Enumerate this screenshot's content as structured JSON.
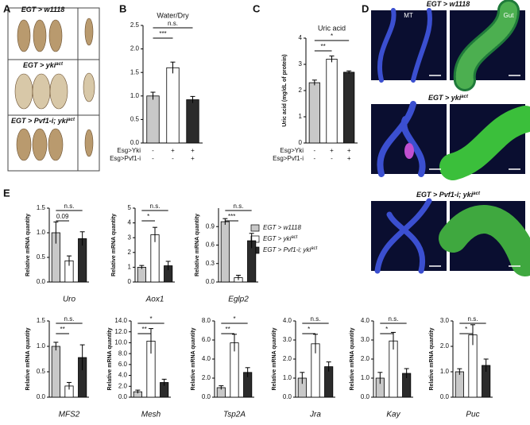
{
  "panel_labels": [
    "A",
    "B",
    "C",
    "D",
    "E"
  ],
  "fly_photos": {
    "labels": [
      {
        "text": "EGT > w1118"
      },
      {
        "text": "EGT > yki",
        "sup": "act"
      },
      {
        "text": "EGT > Pvf1-i; yki",
        "sup": "act"
      }
    ]
  },
  "microscopy": {
    "rows": [
      {
        "text": "EGT > w1118"
      },
      {
        "text": "EGT > yki",
        "sup": "act"
      },
      {
        "text": "EGT > Pvf1-i; yki",
        "sup": "act"
      }
    ],
    "columns": [
      "MT",
      "Gut"
    ]
  },
  "legend": {
    "entries": [
      {
        "text": "EGT > w1118",
        "color": "#c8c8c8"
      },
      {
        "text": "EGT > yki",
        "sup": "act",
        "color": "#ffffff"
      },
      {
        "text": "EGT > Pvf1-i; yki",
        "sup": "act",
        "color": "#2b2b2b"
      }
    ]
  },
  "chart_data": [
    {
      "type": "bar",
      "title": "Water/Dry",
      "colors": [
        "#c8c8c8",
        "#ffffff",
        "#2b2b2b"
      ],
      "values": [
        1.0,
        1.6,
        0.92
      ],
      "errors": [
        0.08,
        0.12,
        0.07
      ],
      "ylim": [
        0,
        2.5
      ],
      "yticks": [
        {
          "value": 0,
          "label": "0.0"
        },
        0.5,
        {
          "value": 1,
          "label": "1.0"
        },
        1.5,
        {
          "value": 2,
          "label": "2.0"
        },
        2.5
      ],
      "significance": [
        "***",
        "n.s."
      ],
      "conditions": [
        {
          "label": "Esg>Yki",
          "values": [
            "-",
            "+",
            "+"
          ]
        },
        {
          "label": "Esg>Pvf1-i",
          "values": [
            "-",
            "-",
            "+"
          ]
        }
      ]
    },
    {
      "type": "bar",
      "title": "Uric acid",
      "ylabel": "Uric acid (mg/dL of protein)",
      "colors": [
        "#c8c8c8",
        "#ffffff",
        "#2b2b2b"
      ],
      "values": [
        2.3,
        3.2,
        2.7
      ],
      "errors": [
        0.1,
        0.12,
        0.05
      ],
      "ylim": [
        0,
        4
      ],
      "yticks": [
        0,
        1,
        2,
        3,
        4
      ],
      "significance": [
        "**",
        "*"
      ],
      "conditions": [
        {
          "label": "Esg>Yki",
          "values": [
            "-",
            "+",
            "+"
          ]
        },
        {
          "label": "Esg>Pvf1-i",
          "values": [
            "-",
            "-",
            "+"
          ]
        }
      ]
    },
    {
      "type": "bar",
      "xlabel": "Uro",
      "ylabel": "Relative mRNA quantity",
      "colors": [
        "#c8c8c8",
        "#ffffff",
        "#2b2b2b"
      ],
      "values": [
        1.0,
        0.43,
        0.88
      ],
      "errors": [
        0.22,
        0.1,
        0.14
      ],
      "ylim": [
        0,
        1.5
      ],
      "yticks": [
        {
          "value": 0,
          "label": "0.0"
        },
        0.5,
        {
          "value": 1,
          "label": "1.0"
        },
        1.5
      ],
      "significance": [
        "0.09",
        "n.s."
      ]
    },
    {
      "type": "bar",
      "xlabel": "Aox1",
      "ylabel": "Relative mRNA quantity",
      "colors": [
        "#c8c8c8",
        "#ffffff",
        "#2b2b2b"
      ],
      "values": [
        1.0,
        3.2,
        1.1
      ],
      "errors": [
        0.12,
        0.5,
        0.3
      ],
      "ylim": [
        0,
        5
      ],
      "yticks": [
        0,
        1,
        2,
        3,
        4,
        5
      ],
      "significance": [
        "*",
        "n.s."
      ]
    },
    {
      "type": "bar",
      "xlabel": "Eglp2",
      "ylabel": "Relative mRNA quantity",
      "colors": [
        "#c8c8c8",
        "#ffffff",
        "#2b2b2b"
      ],
      "values": [
        0.98,
        0.07,
        0.67
      ],
      "errors": [
        0.05,
        0.04,
        0.12
      ],
      "ylim": [
        0,
        1.2
      ],
      "yticks": [
        {
          "value": 0,
          "label": "0.0"
        },
        0.3,
        0.6,
        0.9
      ],
      "significance": [
        "***",
        "n.s."
      ]
    },
    {
      "type": "bar",
      "xlabel": "MFS2",
      "ylabel": "Relative mRNA quantity",
      "colors": [
        "#c8c8c8",
        "#ffffff",
        "#2b2b2b"
      ],
      "values": [
        1.0,
        0.22,
        0.78
      ],
      "errors": [
        0.08,
        0.07,
        0.25
      ],
      "ylim": [
        0,
        1.5
      ],
      "yticks": [
        {
          "value": 0,
          "label": "0.0"
        },
        0.5,
        {
          "value": 1,
          "label": "1.0"
        },
        1.5
      ],
      "significance": [
        "**",
        "n.s."
      ]
    },
    {
      "type": "bar",
      "xlabel": "Mesh",
      "ylabel": "Relative mRNA quantity",
      "colors": [
        "#c8c8c8",
        "#ffffff",
        "#2b2b2b"
      ],
      "values": [
        1.0,
        10.3,
        2.7
      ],
      "errors": [
        0.3,
        2.3,
        0.6
      ],
      "ylim": [
        0,
        14
      ],
      "yticks": [
        {
          "value": 0,
          "label": "0.0"
        },
        {
          "value": 2,
          "label": "2.0"
        },
        {
          "value": 4,
          "label": "4.0"
        },
        {
          "value": 6,
          "label": "6.0"
        },
        {
          "value": 8,
          "label": "8.0"
        },
        {
          "value": 10,
          "label": "10.0"
        },
        {
          "value": 12,
          "label": "12.0"
        },
        {
          "value": 14,
          "label": "14.0"
        }
      ],
      "significance": [
        "**",
        "*"
      ]
    },
    {
      "type": "bar",
      "xlabel": "Tsp2A",
      "ylabel": "Relative mRNA quantity",
      "colors": [
        "#c8c8c8",
        "#ffffff",
        "#2b2b2b"
      ],
      "values": [
        1.0,
        5.7,
        2.6
      ],
      "errors": [
        0.2,
        0.9,
        0.5
      ],
      "ylim": [
        0,
        8
      ],
      "yticks": [
        {
          "value": 0,
          "label": "0.0"
        },
        {
          "value": 2,
          "label": "2.0"
        },
        {
          "value": 4,
          "label": "4.0"
        },
        {
          "value": 6,
          "label": "6.0"
        },
        {
          "value": 8,
          "label": "8.0"
        }
      ],
      "significance": [
        "**",
        "*"
      ]
    },
    {
      "type": "bar",
      "xlabel": "Jra",
      "ylabel": "Relative mRNA quantity",
      "colors": [
        "#c8c8c8",
        "#ffffff",
        "#2b2b2b"
      ],
      "values": [
        1.0,
        2.8,
        1.6
      ],
      "errors": [
        0.3,
        0.5,
        0.25
      ],
      "ylim": [
        0,
        4
      ],
      "yticks": [
        {
          "value": 0,
          "label": "0.0"
        },
        {
          "value": 1,
          "label": "1.0"
        },
        {
          "value": 2,
          "label": "2.0"
        },
        {
          "value": 3,
          "label": "3.0"
        },
        {
          "value": 4,
          "label": "4.0"
        }
      ],
      "significance": [
        "*",
        "n.s."
      ]
    },
    {
      "type": "bar",
      "xlabel": "Kay",
      "ylabel": "Relative mRNA quantity",
      "colors": [
        "#c8c8c8",
        "#ffffff",
        "#2b2b2b"
      ],
      "values": [
        1.0,
        2.95,
        1.25
      ],
      "errors": [
        0.3,
        0.45,
        0.25
      ],
      "ylim": [
        0,
        4
      ],
      "yticks": [
        {
          "value": 0,
          "label": "0.0"
        },
        {
          "value": 1,
          "label": "1.0"
        },
        {
          "value": 2,
          "label": "2.0"
        },
        {
          "value": 3,
          "label": "3.0"
        },
        {
          "value": 4,
          "label": "4.0"
        }
      ],
      "significance": [
        "*",
        "n.s."
      ]
    },
    {
      "type": "bar",
      "xlabel": "Puc",
      "ylabel": "Relative mRNA quantity",
      "colors": [
        "#c8c8c8",
        "#ffffff",
        "#2b2b2b"
      ],
      "values": [
        1.0,
        2.45,
        1.25
      ],
      "errors": [
        0.12,
        0.4,
        0.25
      ],
      "ylim": [
        0,
        3
      ],
      "yticks": [
        {
          "value": 0,
          "label": "0.0"
        },
        {
          "value": 1,
          "label": "1.0"
        },
        {
          "value": 2,
          "label": "2.0"
        },
        {
          "value": 3,
          "label": "3.0"
        }
      ],
      "significance": [
        "*",
        "n.s."
      ]
    }
  ]
}
